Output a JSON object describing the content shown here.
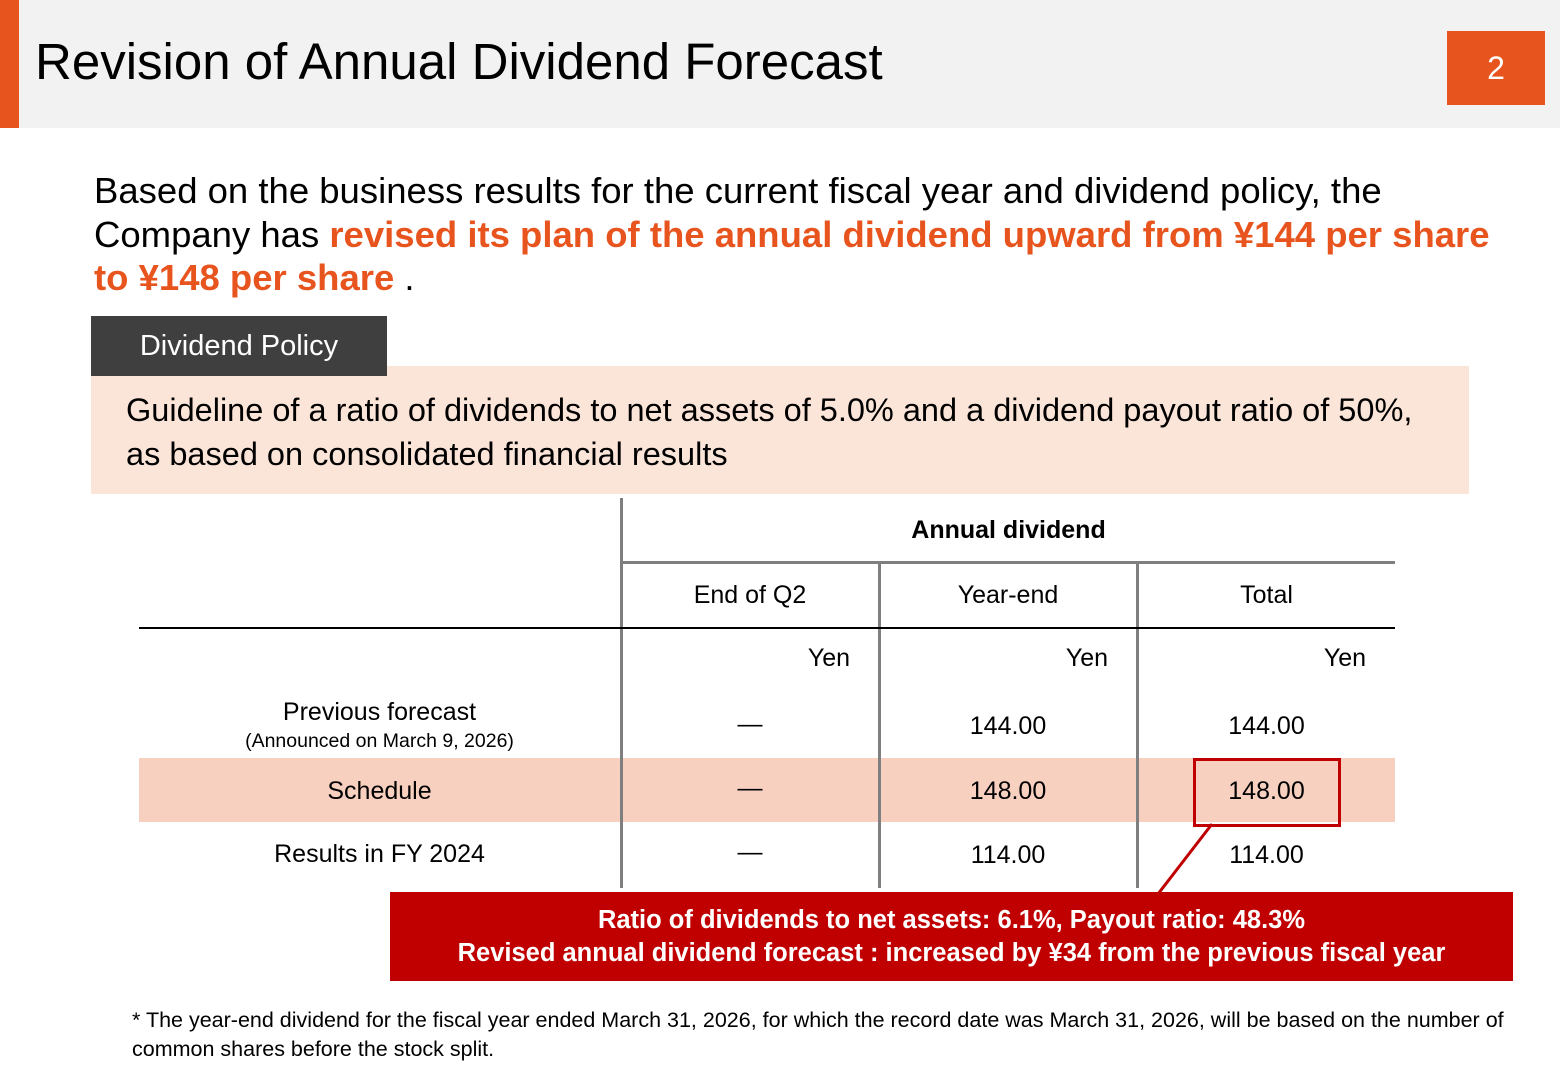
{
  "header": {
    "title": "Revision of Annual Dividend Forecast",
    "page_number": "2"
  },
  "intro": {
    "text_before": "Based on the business results for the current fiscal year and dividend policy, the Company has ",
    "highlight": "revised its plan of the annual dividend upward from ¥144 per share to ¥148 per share",
    "text_after": " ."
  },
  "policy": {
    "tab_label": "Dividend Policy",
    "text": "Guideline of a ratio of dividends to net assets of 5.0% and a dividend payout ratio of 50%, as based on consolidated financial results"
  },
  "table": {
    "group_header": "Annual dividend",
    "columns": [
      "End of Q2",
      "Year-end",
      "Total"
    ],
    "units": [
      "Yen",
      "Yen",
      "Yen"
    ],
    "rows": [
      {
        "label": "Previous forecast",
        "sublabel": "(Announced on March 9, 2026)",
        "q2": "―",
        "year_end": "144.00",
        "total": "144.00"
      },
      {
        "label": "Schedule",
        "q2": "―",
        "year_end": "148.00",
        "total": "148.00"
      },
      {
        "label": "Results in FY 2024",
        "q2": "―",
        "year_end": "114.00",
        "total": "114.00"
      }
    ]
  },
  "callout": {
    "line1": "Ratio of dividends to net assets: 6.1%, Payout ratio: 48.3%",
    "line2": "Revised annual dividend forecast : increased by ¥34 from the previous fiscal year"
  },
  "footnote": "* The year-end dividend for the fiscal year ended March 31, 2026, for which the record date was March 31, 2026, will be based on the number of common shares before the stock split.",
  "colors": {
    "accent": "#e8541e",
    "callout": "#c00000",
    "policy_bg": "#fbe4d8",
    "schedule_bg": "#f8d0c0",
    "tab_bg": "#3f3f3f"
  }
}
